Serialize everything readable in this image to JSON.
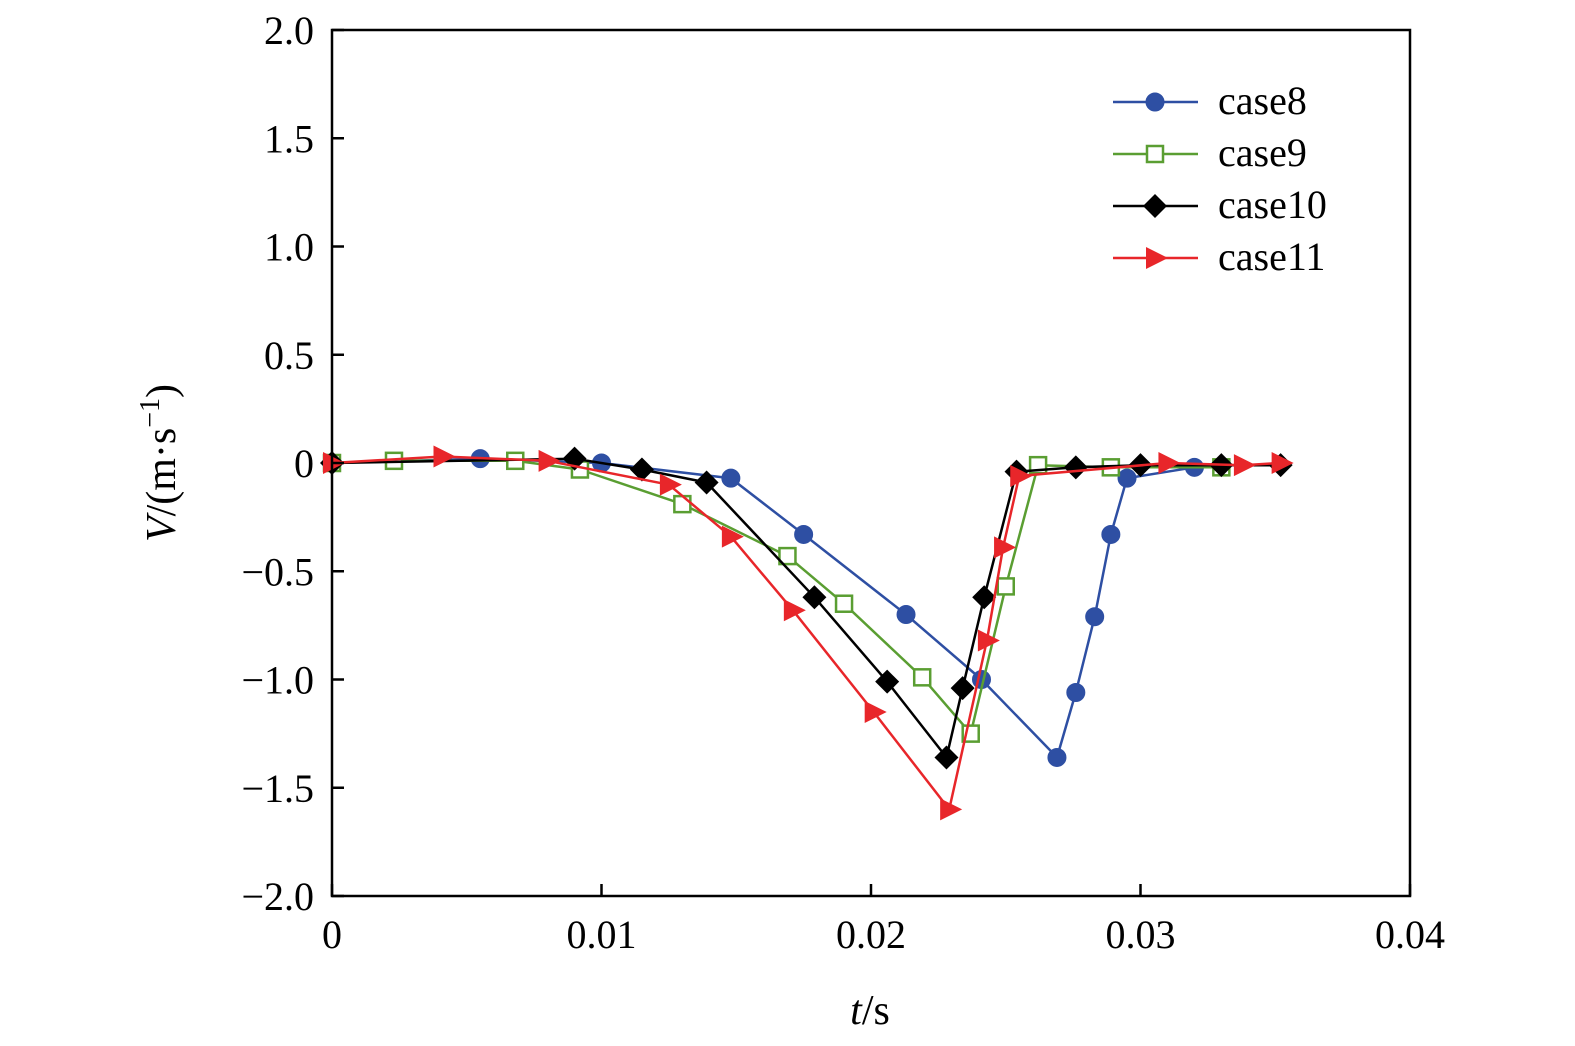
{
  "chart_data": {
    "type": "line",
    "xlabel": {
      "var": "t",
      "unit": "/s"
    },
    "ylabel": {
      "var": "V",
      "unit": "/(m·s",
      "sup": "−1",
      "close": ")"
    },
    "xlim": [
      0,
      0.04
    ],
    "ylim": [
      -2.0,
      2.0
    ],
    "xticks": [
      0,
      0.01,
      0.02,
      0.03,
      0.04
    ],
    "xtick_labels": [
      "0",
      "0.01",
      "0.02",
      "0.03",
      "0.04"
    ],
    "yticks": [
      2.0,
      1.5,
      1.0,
      0.5,
      0,
      -0.5,
      -1.0,
      -1.5,
      -2.0
    ],
    "ytick_labels": [
      "2.0",
      "1.5",
      "1.0",
      "0.5",
      "0",
      "−0.5",
      "−1.0",
      "−1.5",
      "−2.0"
    ],
    "grid": false,
    "legend_position": "top-right",
    "series": [
      {
        "name": "case8",
        "color": "#2e4fa3",
        "marker": "circle",
        "x": [
          0,
          0.0055,
          0.01,
          0.0148,
          0.0175,
          0.0213,
          0.0241,
          0.0269,
          0.0276,
          0.0283,
          0.0289,
          0.0295,
          0.032
        ],
        "y": [
          0,
          0.02,
          0.0,
          -0.07,
          -0.33,
          -0.7,
          -1.0,
          -1.36,
          -1.06,
          -0.71,
          -0.33,
          -0.07,
          -0.02
        ]
      },
      {
        "name": "case9",
        "color": "#5a9e32",
        "marker": "square-open",
        "x": [
          0,
          0.0023,
          0.0068,
          0.0092,
          0.013,
          0.0169,
          0.019,
          0.0219,
          0.0237,
          0.025,
          0.0262,
          0.0289,
          0.033
        ],
        "y": [
          0,
          0.01,
          0.01,
          -0.03,
          -0.19,
          -0.43,
          -0.65,
          -0.99,
          -1.25,
          -0.57,
          -0.01,
          -0.02,
          -0.02
        ]
      },
      {
        "name": "case10",
        "color": "#000000",
        "marker": "diamond",
        "x": [
          0,
          0.009,
          0.0115,
          0.0139,
          0.0179,
          0.0206,
          0.0228,
          0.0234,
          0.0242,
          0.0254,
          0.0276,
          0.03,
          0.033,
          0.0352
        ],
        "y": [
          0,
          0.02,
          -0.03,
          -0.09,
          -0.62,
          -1.01,
          -1.36,
          -1.04,
          -0.62,
          -0.04,
          -0.02,
          -0.01,
          -0.01,
          -0.01
        ]
      },
      {
        "name": "case11",
        "color": "#e8262a",
        "marker": "triangle-right",
        "x": [
          0,
          0.0041,
          0.008,
          0.0125,
          0.0148,
          0.0171,
          0.0201,
          0.0229,
          0.0243,
          0.0249,
          0.0255,
          0.031,
          0.0338,
          0.0352
        ],
        "y": [
          0,
          0.03,
          0.01,
          -0.1,
          -0.34,
          -0.68,
          -1.15,
          -1.6,
          -0.82,
          -0.39,
          -0.06,
          0.0,
          -0.01,
          0.0
        ]
      }
    ]
  }
}
